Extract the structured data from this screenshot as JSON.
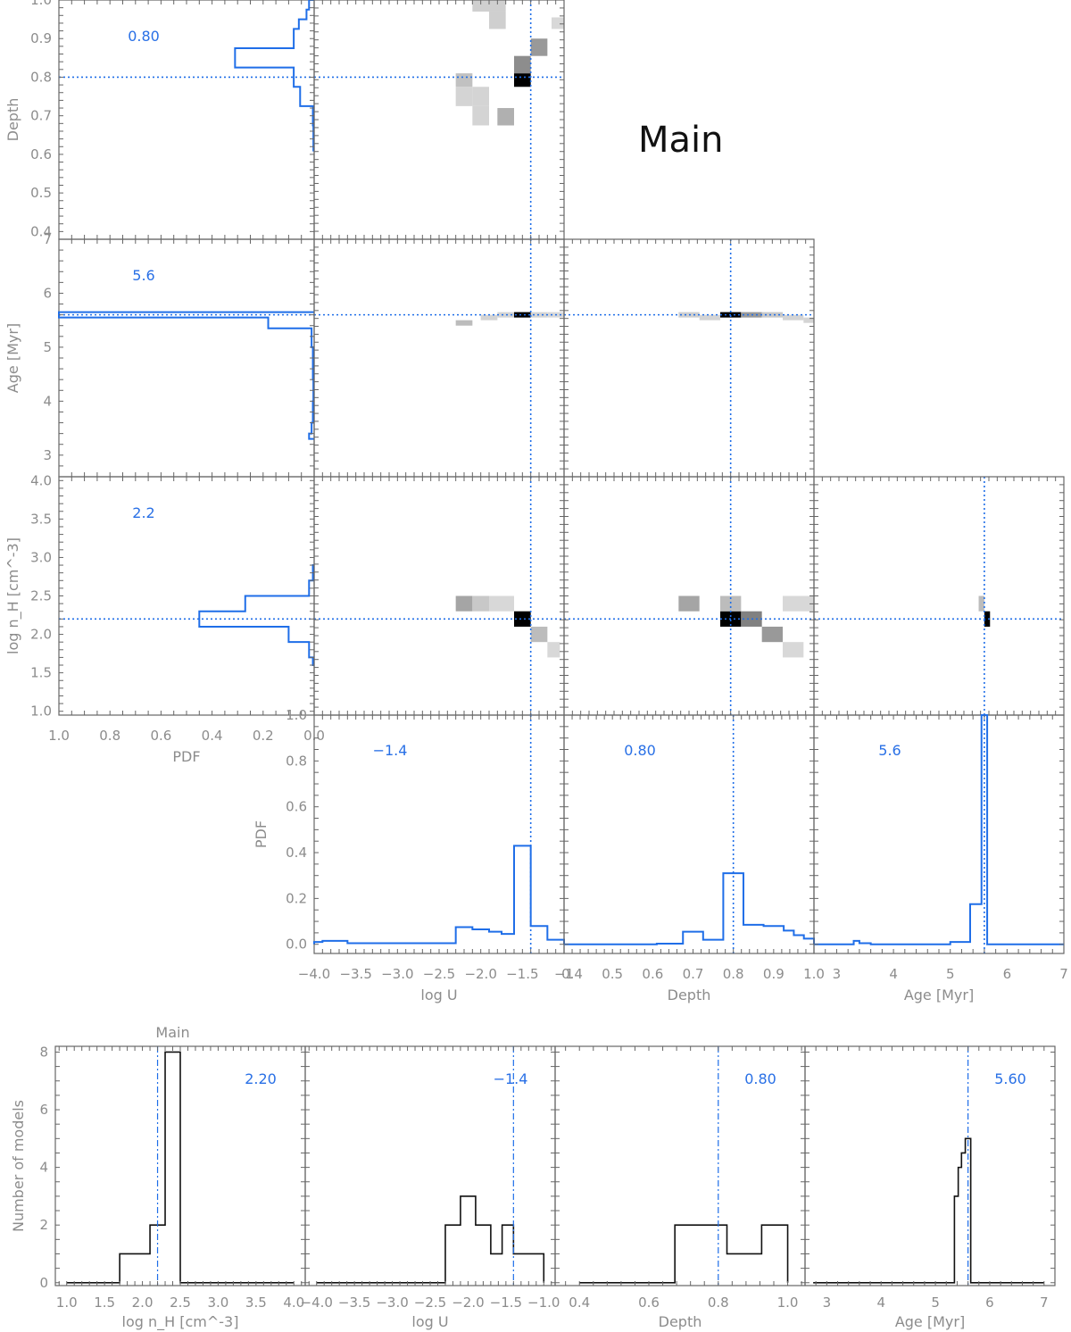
{
  "figure": {
    "title": "Main",
    "colors": {
      "accent": "#1f6ee8",
      "axis": "#666666",
      "text": "#8c8c8c"
    }
  },
  "chart_data": [
    {
      "type": "line",
      "panel": "corner-marginal-log-nH",
      "orientation": "horizontal-pdf",
      "ylabel": "log n_H [cm^-3]",
      "xlabel": "PDF",
      "yticks": [
        "1.0",
        "1.5",
        "2.0",
        "2.5",
        "3.0",
        "3.5",
        "4.0"
      ],
      "xticks": [
        "1.0",
        "0.8",
        "0.6",
        "0.4",
        "0.2",
        "0.0"
      ],
      "best_value": "2.2",
      "best": 2.2,
      "ylim": [
        0.95,
        4.05
      ],
      "xlim": [
        1.0,
        0.0
      ],
      "bin_edges": [
        1.6,
        1.7,
        1.9,
        2.1,
        2.3,
        2.5,
        2.7,
        2.9
      ],
      "pdf": [
        0.005,
        0.02,
        0.1,
        0.45,
        0.27,
        0.02,
        0.005
      ]
    },
    {
      "type": "line",
      "panel": "corner-marginal-age-left",
      "orientation": "horizontal-pdf",
      "ylabel": "Age [Myr]",
      "yticks": [
        "3",
        "4",
        "5",
        "6",
        "7"
      ],
      "best_value": "5.6",
      "best": 5.6,
      "ylim": [
        2.6,
        7.0
      ],
      "xlim": [
        1.0,
        0.0
      ],
      "bin_edges": [
        3.3,
        3.4,
        3.6,
        4.0,
        4.4,
        5.0,
        5.35,
        5.55,
        5.65
      ],
      "pdf": [
        0.02,
        0.01,
        0.005,
        0.003,
        0.005,
        0.01,
        0.18,
        1.0
      ]
    },
    {
      "type": "line",
      "panel": "corner-marginal-depth-left",
      "orientation": "horizontal-pdf",
      "ylabel": "Depth",
      "yticks": [
        "0.4",
        "0.5",
        "0.6",
        "0.7",
        "0.8",
        "0.9",
        "1.0"
      ],
      "best_value": "0.80",
      "best": 0.8,
      "ylim": [
        0.38,
        1.0
      ],
      "xlim": [
        1.0,
        0.0
      ],
      "bin_edges": [
        0.61,
        0.675,
        0.725,
        0.775,
        0.825,
        0.875,
        0.925,
        0.95,
        0.975,
        1.0
      ],
      "pdf": [
        0.003,
        0.005,
        0.055,
        0.08,
        0.31,
        0.08,
        0.06,
        0.03,
        0.02
      ]
    },
    {
      "type": "heatmap",
      "panel": "corner-2d-logU-depth",
      "xlim": [
        -4.0,
        -1.0
      ],
      "ylim": [
        0.38,
        1.0
      ],
      "best_x": -1.4,
      "best_y": 0.8,
      "cells": [
        {
          "x0": -1.6,
          "x1": -1.4,
          "y0": 0.775,
          "y1": 0.81,
          "v": 1.0
        },
        {
          "x0": -1.6,
          "x1": -1.4,
          "y0": 0.81,
          "y1": 0.855,
          "v": 0.4
        },
        {
          "x0": -2.3,
          "x1": -2.1,
          "y0": 0.775,
          "y1": 0.81,
          "v": 0.18
        },
        {
          "x0": -2.3,
          "x1": -2.1,
          "y0": 0.725,
          "y1": 0.775,
          "v": 0.1
        },
        {
          "x0": -2.1,
          "x1": -1.9,
          "y0": 0.725,
          "y1": 0.775,
          "v": 0.1
        },
        {
          "x0": -2.1,
          "x1": -1.9,
          "y0": 0.675,
          "y1": 0.725,
          "v": 0.1
        },
        {
          "x0": -1.8,
          "x1": -1.6,
          "y0": 0.675,
          "y1": 0.72,
          "v": 0.25
        },
        {
          "x0": -1.4,
          "x1": -1.2,
          "y0": 0.855,
          "y1": 0.9,
          "v": 0.35
        },
        {
          "x0": -2.1,
          "x1": -1.9,
          "y0": 0.97,
          "y1": 1.0,
          "v": 0.12
        },
        {
          "x0": -1.9,
          "x1": -1.7,
          "y0": 0.97,
          "y1": 1.0,
          "v": 0.12
        },
        {
          "x0": -1.9,
          "x1": -1.7,
          "y0": 0.925,
          "y1": 0.97,
          "v": 0.12
        },
        {
          "x0": -1.15,
          "x1": -1.0,
          "y0": 0.925,
          "y1": 0.955,
          "v": 0.08
        }
      ]
    },
    {
      "type": "heatmap",
      "panel": "corner-2d-logU-age",
      "xlim": [
        -4.0,
        -1.0
      ],
      "ylim": [
        2.6,
        7.0
      ],
      "best_x": -1.4,
      "best_y": 5.6,
      "cells": [
        {
          "x0": -1.6,
          "x1": -1.4,
          "y0": 5.55,
          "y1": 5.65,
          "v": 1.0
        },
        {
          "x0": -1.8,
          "x1": -1.6,
          "y0": 5.55,
          "y1": 5.65,
          "v": 0.1
        },
        {
          "x0": -2.0,
          "x1": -1.8,
          "y0": 5.5,
          "y1": 5.6,
          "v": 0.1
        },
        {
          "x0": -2.3,
          "x1": -2.1,
          "y0": 5.4,
          "y1": 5.5,
          "v": 0.2
        },
        {
          "x0": -1.4,
          "x1": -1.2,
          "y0": 5.55,
          "y1": 5.65,
          "v": 0.1
        },
        {
          "x0": -1.2,
          "x1": -1.0,
          "y0": 5.55,
          "y1": 5.65,
          "v": 0.08
        }
      ]
    },
    {
      "type": "heatmap",
      "panel": "corner-2d-depth-age",
      "xlim": [
        0.4,
        1.0
      ],
      "ylim": [
        2.6,
        7.0
      ],
      "best_x": 0.8,
      "best_y": 5.6,
      "cells": [
        {
          "x0": 0.775,
          "x1": 0.825,
          "y0": 5.55,
          "y1": 5.65,
          "v": 1.0
        },
        {
          "x0": 0.825,
          "x1": 0.875,
          "y0": 5.55,
          "y1": 5.65,
          "v": 0.35
        },
        {
          "x0": 0.875,
          "x1": 0.925,
          "y0": 5.55,
          "y1": 5.65,
          "v": 0.15
        },
        {
          "x0": 0.675,
          "x1": 0.725,
          "y0": 5.55,
          "y1": 5.65,
          "v": 0.12
        },
        {
          "x0": 0.725,
          "x1": 0.775,
          "y0": 5.5,
          "y1": 5.6,
          "v": 0.1
        },
        {
          "x0": 0.925,
          "x1": 0.975,
          "y0": 5.5,
          "y1": 5.6,
          "v": 0.1
        },
        {
          "x0": 0.975,
          "x1": 1.0,
          "y0": 5.45,
          "y1": 5.55,
          "v": 0.1
        }
      ]
    },
    {
      "type": "heatmap",
      "panel": "corner-2d-logU-nH",
      "xlim": [
        -4.0,
        -1.0
      ],
      "ylim": [
        0.95,
        4.05
      ],
      "best_x": -1.4,
      "best_y": 2.2,
      "cells": [
        {
          "x0": -1.6,
          "x1": -1.4,
          "y0": 2.1,
          "y1": 2.3,
          "v": 1.0
        },
        {
          "x0": -2.3,
          "x1": -2.1,
          "y0": 2.3,
          "y1": 2.5,
          "v": 0.3
        },
        {
          "x0": -2.1,
          "x1": -1.9,
          "y0": 2.3,
          "y1": 2.5,
          "v": 0.15
        },
        {
          "x0": -1.9,
          "x1": -1.6,
          "y0": 2.3,
          "y1": 2.5,
          "v": 0.08
        },
        {
          "x0": -1.4,
          "x1": -1.2,
          "y0": 1.9,
          "y1": 2.1,
          "v": 0.2
        },
        {
          "x0": -1.2,
          "x1": -1.05,
          "y0": 1.7,
          "y1": 1.9,
          "v": 0.08
        }
      ]
    },
    {
      "type": "heatmap",
      "panel": "corner-2d-depth-nH",
      "xlim": [
        0.4,
        1.0
      ],
      "ylim": [
        0.95,
        4.05
      ],
      "best_x": 0.8,
      "best_y": 2.2,
      "cells": [
        {
          "x0": 0.775,
          "x1": 0.825,
          "y0": 2.1,
          "y1": 2.3,
          "v": 1.0
        },
        {
          "x0": 0.825,
          "x1": 0.875,
          "y0": 2.1,
          "y1": 2.3,
          "v": 0.45
        },
        {
          "x0": 0.675,
          "x1": 0.725,
          "y0": 2.3,
          "y1": 2.5,
          "v": 0.3
        },
        {
          "x0": 0.775,
          "x1": 0.825,
          "y0": 2.3,
          "y1": 2.5,
          "v": 0.2
        },
        {
          "x0": 0.875,
          "x1": 0.925,
          "y0": 1.9,
          "y1": 2.1,
          "v": 0.35
        },
        {
          "x0": 0.925,
          "x1": 0.975,
          "y0": 1.7,
          "y1": 1.9,
          "v": 0.08
        },
        {
          "x0": 0.925,
          "x1": 1.0,
          "y0": 2.3,
          "y1": 2.5,
          "v": 0.08
        }
      ]
    },
    {
      "type": "heatmap",
      "panel": "corner-2d-age-nH",
      "xlim": [
        2.6,
        7.0
      ],
      "ylim": [
        0.95,
        4.05
      ],
      "best_x": 5.6,
      "best_y": 2.2,
      "cells": [
        {
          "x0": 5.6,
          "x1": 5.7,
          "y0": 2.1,
          "y1": 2.3,
          "v": 1.0
        },
        {
          "x0": 5.5,
          "x1": 5.6,
          "y0": 2.3,
          "y1": 2.5,
          "v": 0.2
        }
      ]
    },
    {
      "type": "line",
      "panel": "corner-marginal-logU",
      "xlabel": "log U",
      "ylabel": "PDF",
      "xticks": [
        "−4.0",
        "−3.5",
        "−3.0",
        "−2.5",
        "−2.0",
        "−1.5",
        "−1"
      ],
      "yticks": [
        "0.0",
        "0.2",
        "0.4",
        "0.6",
        "0.8",
        "1.0"
      ],
      "best_value": "−1.4",
      "best": -1.4,
      "xlim": [
        -4.0,
        -1.0
      ],
      "ylim": [
        -0.04,
        1.0
      ],
      "bin_edges": [
        -4.0,
        -3.9,
        -3.6,
        -2.3,
        -2.1,
        -1.9,
        -1.75,
        -1.6,
        -1.4,
        -1.2,
        -1.0
      ],
      "pdf": [
        0.01,
        0.015,
        0.005,
        0.075,
        0.065,
        0.055,
        0.045,
        0.43,
        0.08,
        0.02
      ]
    },
    {
      "type": "line",
      "panel": "corner-marginal-depth-bottom",
      "xlabel": "Depth",
      "xticks": [
        "0.4",
        "0.5",
        "0.6",
        "0.7",
        "0.8",
        "0.9",
        "1.0"
      ],
      "best_value": "0.80",
      "best": 0.8,
      "xlim": [
        0.38,
        1.0
      ],
      "ylim": [
        -0.04,
        1.0
      ],
      "bin_edges": [
        0.38,
        0.61,
        0.675,
        0.725,
        0.775,
        0.825,
        0.875,
        0.925,
        0.95,
        0.975,
        1.0
      ],
      "pdf": [
        0.0,
        0.003,
        0.055,
        0.02,
        0.31,
        0.085,
        0.08,
        0.06,
        0.04,
        0.025
      ]
    },
    {
      "type": "line",
      "panel": "corner-marginal-age-bottom",
      "xlabel": "Age [Myr]",
      "xticks": [
        "3",
        "4",
        "5",
        "6",
        "7"
      ],
      "best_value": "5.6",
      "best": 5.6,
      "xlim": [
        2.6,
        7.0
      ],
      "ylim": [
        -0.04,
        1.0
      ],
      "bin_edges": [
        2.6,
        3.3,
        3.4,
        3.6,
        5.0,
        5.35,
        5.55,
        5.65,
        7.0
      ],
      "pdf": [
        0.0,
        0.015,
        0.005,
        0.0,
        0.01,
        0.175,
        1.0,
        0.0
      ]
    },
    {
      "type": "bar",
      "panel": "hist-log-nH",
      "title": "Main",
      "xlabel": "log n_H [cm^-3]",
      "ylabel": "Number of models",
      "xticks": [
        "1.0",
        "1.5",
        "2.0",
        "2.5",
        "3.0",
        "3.5",
        "4.0"
      ],
      "yticks": [
        "0",
        "2",
        "4",
        "6",
        "8"
      ],
      "best_value": "2.20",
      "best": 2.2,
      "xlim": [
        0.85,
        4.15
      ],
      "ylim": [
        -0.1,
        8.2
      ],
      "bin_edges": [
        1.0,
        1.7,
        2.1,
        2.3,
        2.5,
        4.0
      ],
      "counts": [
        0,
        1,
        2,
        8,
        0
      ]
    },
    {
      "type": "bar",
      "panel": "hist-logU",
      "xlabel": "log U",
      "xticks": [
        "−4.0",
        "−3.5",
        "−3.0",
        "−2.5",
        "−2.0",
        "−1.5",
        "−1.0"
      ],
      "best_value": "−1.4",
      "best": -1.4,
      "xlim": [
        -4.15,
        -0.85
      ],
      "ylim": [
        -0.1,
        8.2
      ],
      "bin_edges": [
        -4.0,
        -2.3,
        -2.1,
        -1.9,
        -1.7,
        -1.55,
        -1.4,
        -1.25,
        -1.0
      ],
      "counts": [
        0,
        2,
        3,
        2,
        1,
        2,
        1,
        1
      ]
    },
    {
      "type": "bar",
      "panel": "hist-depth",
      "xlabel": "Depth",
      "xticks": [
        "0.4",
        "0.6",
        "0.8",
        "1.0"
      ],
      "best_value": "0.80",
      "best": 0.8,
      "xlim": [
        0.33,
        1.05
      ],
      "ylim": [
        -0.1,
        8.2
      ],
      "bin_edges": [
        0.4,
        0.675,
        0.825,
        0.925,
        1.0
      ],
      "counts": [
        0,
        2,
        1,
        2
      ]
    },
    {
      "type": "bar",
      "panel": "hist-age",
      "xlabel": "Age [Myr]",
      "xticks": [
        "3",
        "4",
        "5",
        "6",
        "7"
      ],
      "best_value": "5.60",
      "best": 5.6,
      "xlim": [
        2.6,
        7.2
      ],
      "ylim": [
        -0.1,
        8.2
      ],
      "bin_edges": [
        2.75,
        5.35,
        5.42,
        5.48,
        5.55,
        5.65,
        7.0
      ],
      "counts": [
        0,
        3,
        4,
        4.5,
        5,
        0
      ]
    }
  ]
}
